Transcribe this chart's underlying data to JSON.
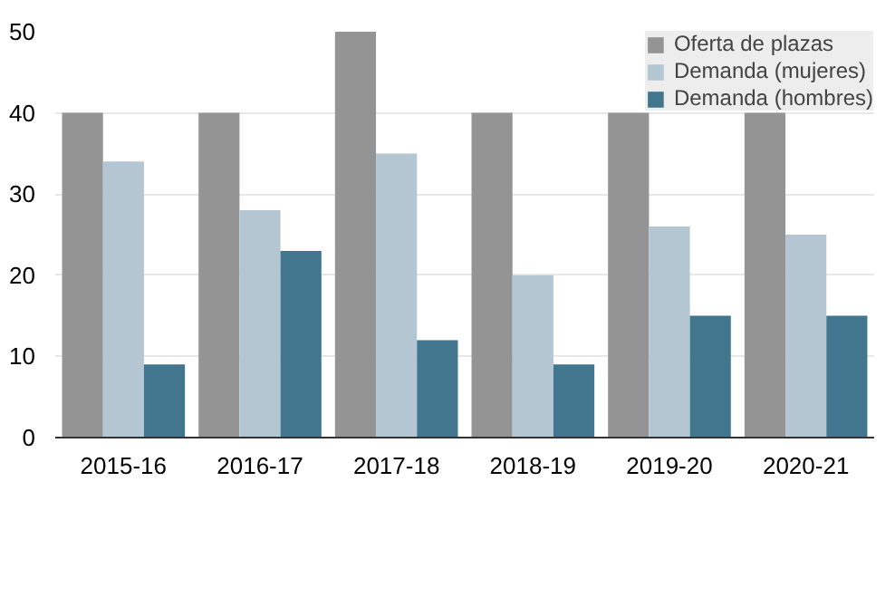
{
  "chart_data": {
    "type": "bar",
    "categories": [
      "2015-16",
      "2016-17",
      "2017-18",
      "2018-19",
      "2019-20",
      "2020-21"
    ],
    "series": [
      {
        "name": "Oferta de plazas",
        "color": "#949494",
        "values": [
          40,
          40,
          50,
          40,
          40,
          40
        ]
      },
      {
        "name": "Demanda (mujeres)",
        "color": "#b4c6d2",
        "values": [
          34,
          28,
          35,
          20,
          26,
          25
        ]
      },
      {
        "name": "Demanda (hombres)",
        "color": "#41768e",
        "values": [
          9,
          23,
          12,
          9,
          15,
          15
        ]
      }
    ],
    "ylim": [
      0,
      50
    ],
    "yticks": [
      0,
      10,
      20,
      30,
      40,
      50
    ],
    "grid": "y",
    "legend": "top right"
  }
}
